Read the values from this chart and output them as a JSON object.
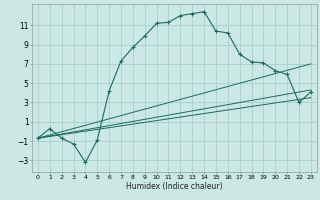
{
  "xlabel": "Humidex (Indice chaleur)",
  "bg_color": "#cce8e4",
  "line_color": "#1a6b5a",
  "grid_color": "#a8cfc9",
  "xlim": [
    -0.5,
    23.5
  ],
  "ylim": [
    -4.2,
    13.2
  ],
  "xticks": [
    0,
    1,
    2,
    3,
    4,
    5,
    6,
    7,
    8,
    9,
    10,
    11,
    12,
    13,
    14,
    15,
    16,
    17,
    18,
    19,
    20,
    21,
    22,
    23
  ],
  "yticks": [
    -3,
    -1,
    1,
    3,
    5,
    7,
    9,
    11
  ],
  "series1_x": [
    0,
    1,
    2,
    3,
    4,
    5,
    6,
    7,
    8,
    9,
    10,
    11,
    12,
    13,
    14,
    15,
    16,
    17,
    18,
    19,
    20,
    21,
    22,
    23
  ],
  "series1_y": [
    -0.7,
    0.3,
    -0.7,
    -1.3,
    -3.2,
    -0.9,
    4.2,
    7.3,
    8.7,
    9.9,
    11.2,
    11.3,
    12.0,
    12.2,
    12.4,
    10.4,
    10.2,
    8.0,
    7.2,
    7.1,
    6.3,
    5.9,
    3.0,
    4.1
  ],
  "series2_x": [
    0,
    23
  ],
  "series2_y": [
    -0.7,
    7.0
  ],
  "series3_x": [
    0,
    23
  ],
  "series3_y": [
    -0.7,
    4.3
  ],
  "series4_x": [
    0,
    23
  ],
  "series4_y": [
    -0.7,
    3.5
  ]
}
